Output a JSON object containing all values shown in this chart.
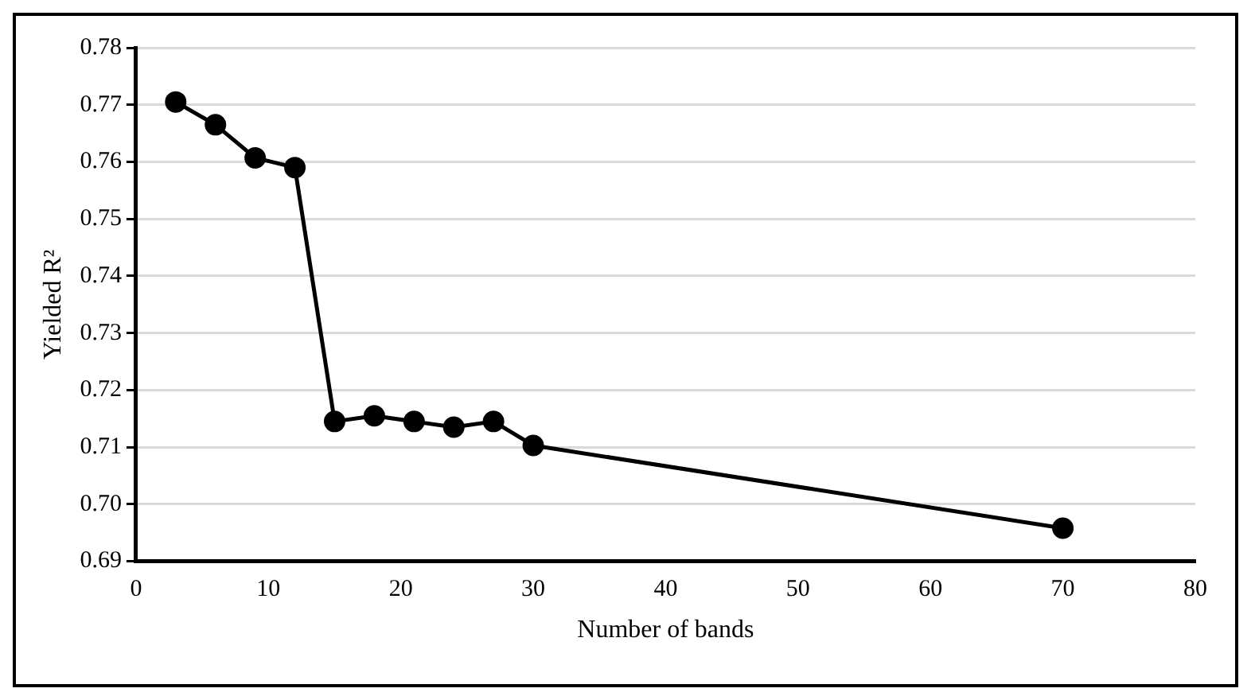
{
  "chart_data": {
    "type": "line",
    "xlabel": "Number of bands",
    "ylabel": "Yielded R²",
    "x": [
      3,
      6,
      9,
      12,
      15,
      18,
      21,
      24,
      27,
      30,
      70
    ],
    "series": [
      {
        "color": "#000000",
        "values": [
          0.7705,
          0.7665,
          0.7607,
          0.759,
          0.7145,
          0.7155,
          0.7145,
          0.7135,
          0.7145,
          0.7103,
          0.6958
        ]
      }
    ],
    "xlim": [
      0,
      80
    ],
    "xticks": [
      0,
      10,
      20,
      30,
      40,
      50,
      60,
      70,
      80
    ],
    "ylim": [
      0.69,
      0.78
    ],
    "yticks": [
      0.69,
      {
        "value": 0.7,
        "label": "0.70"
      },
      0.71,
      0.72,
      0.73,
      0.74,
      0.75,
      0.76,
      0.77,
      0.78
    ],
    "grid": "y",
    "legend": false,
    "marker": "circle",
    "line_style": "solid"
  }
}
